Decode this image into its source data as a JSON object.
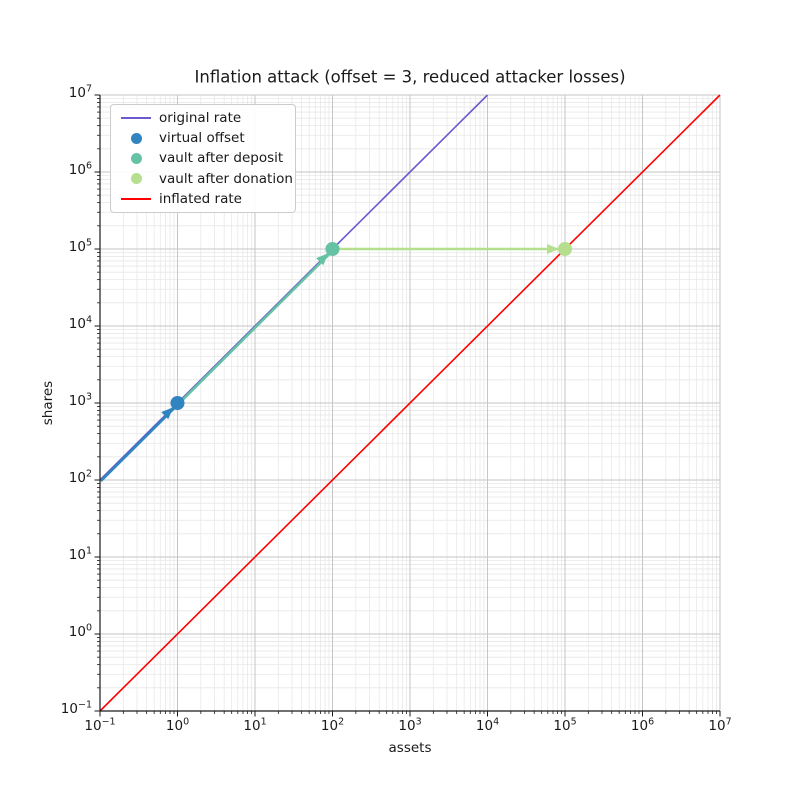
{
  "figure": {
    "background": "#ffffff"
  },
  "chart_data": {
    "type": "line",
    "title": "Inflation attack (offset = 3, reduced attacker losses)",
    "xlabel": "assets",
    "ylabel": "shares",
    "xscale": "log",
    "yscale": "log",
    "xlim_exponents": [
      -1,
      7
    ],
    "ylim_exponents": [
      -1,
      7
    ],
    "x_tick_exponents": [
      -1,
      0,
      1,
      2,
      3,
      4,
      5,
      6,
      7
    ],
    "y_tick_exponents": [
      -1,
      0,
      1,
      2,
      3,
      4,
      5,
      6,
      7
    ],
    "grid": {
      "major": true,
      "minor": true,
      "major_color": "#c6c6c6",
      "minor_color": "#e8e8e8"
    },
    "axis_color": "#1a1a1a",
    "series": [
      {
        "name": "original rate",
        "kind": "line",
        "color": "#6a5acd",
        "points": [
          [
            0.1,
            100
          ],
          [
            10000,
            10000000
          ]
        ]
      },
      {
        "name": "inflated rate",
        "kind": "line",
        "color": "#ff0000",
        "points": [
          [
            0.1,
            0.1
          ],
          [
            10000000,
            10000000
          ]
        ]
      }
    ],
    "annotations": [
      {
        "name": "virtual offset arrow",
        "kind": "arrow",
        "color": "#3084bf",
        "from": [
          0.1,
          100
        ],
        "to": [
          1,
          1000
        ],
        "overlaps_line": true
      },
      {
        "name": "vault after deposit arrow",
        "kind": "arrow",
        "color": "#66c2a5",
        "from": [
          1,
          1000
        ],
        "to": [
          100,
          100000
        ],
        "overlaps_line": true
      },
      {
        "name": "vault after donation arrow",
        "kind": "arrow",
        "color": "#b5df8e",
        "from": [
          100,
          100000
        ],
        "to": [
          100000,
          100000
        ],
        "overlaps_line": false
      }
    ],
    "points": [
      {
        "name": "virtual offset",
        "color": "#3084bf",
        "x": 1,
        "y": 1000
      },
      {
        "name": "vault after deposit",
        "color": "#66c2a5",
        "x": 100,
        "y": 100000
      },
      {
        "name": "vault after donation",
        "color": "#b5df8e",
        "x": 100000,
        "y": 100000
      }
    ],
    "legend": {
      "position": "upper-left",
      "items": [
        {
          "label": "original rate",
          "marker": "line",
          "color": "#6a5acd"
        },
        {
          "label": "virtual offset",
          "marker": "dot",
          "color": "#3084bf"
        },
        {
          "label": "vault after deposit",
          "marker": "dot",
          "color": "#66c2a5"
        },
        {
          "label": "vault after donation",
          "marker": "dot",
          "color": "#b5df8e"
        },
        {
          "label": "inflated rate",
          "marker": "line",
          "color": "#ff0000"
        }
      ]
    }
  }
}
